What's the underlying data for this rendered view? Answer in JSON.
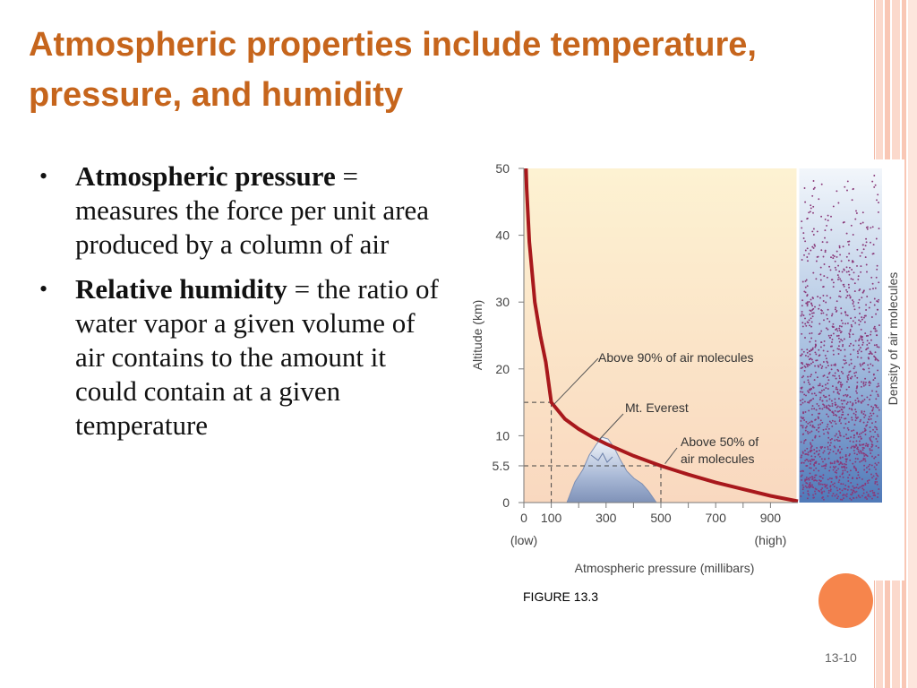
{
  "slide": {
    "title": "Atmospheric properties include temperature, pressure, and humidity",
    "bullets": [
      {
        "term": "Atmospheric pressure",
        "sep": " = ",
        "text": "measures the force per unit area produced by a column of air"
      },
      {
        "term": "Relative humidity",
        "sep": " = ",
        "text": "the ratio of water vapor a given volume of air contains to the amount it could contain at a given temperature"
      }
    ],
    "figure_caption": "FIGURE 13.3",
    "slide_number": "13-10",
    "colors": {
      "title": "#c6651c",
      "curve": "#a8181c",
      "accent": "#f6854c"
    }
  },
  "chart_data": {
    "type": "line",
    "xlabel": "Atmospheric pressure (millibars)",
    "ylabel": "Altitude (km)",
    "side_label": "Density of air molecules",
    "xlim": [
      0,
      1000
    ],
    "ylim": [
      0,
      50
    ],
    "x_ticks": [
      "0",
      "100",
      "300",
      "500",
      "700",
      "900"
    ],
    "x_tick_values": [
      0,
      100,
      300,
      500,
      700,
      900
    ],
    "x_end_labels": {
      "low": "(low)",
      "high": "(high)"
    },
    "y_ticks": [
      "0",
      "5.5",
      "10",
      "20",
      "30",
      "40",
      "50"
    ],
    "y_tick_values": [
      0,
      5.5,
      10,
      20,
      30,
      40,
      50
    ],
    "series": [
      {
        "x": [
          8,
          10,
          20,
          40,
          60,
          80,
          100,
          150,
          200,
          250,
          300,
          400,
          500,
          600,
          700,
          800,
          900,
          1000
        ],
        "y": [
          50,
          47,
          39,
          30,
          25,
          21,
          15,
          12.5,
          11,
          9.8,
          8.8,
          7,
          5.5,
          4.2,
          3,
          2,
          1,
          0.2
        ]
      }
    ],
    "reference_points": [
      {
        "x": 100,
        "y": 15,
        "label": "Above 90% of air molecules"
      },
      {
        "x": 500,
        "y": 5.5,
        "label": "Above 50% of air molecules"
      }
    ],
    "annotations": [
      {
        "label": "Mt. Everest",
        "x": 270,
        "y": 8.8
      }
    ]
  }
}
